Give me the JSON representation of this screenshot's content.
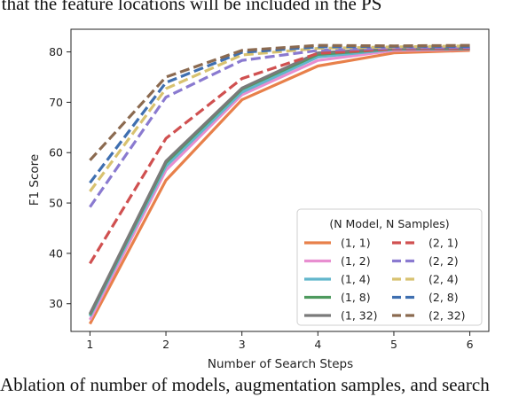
{
  "caption_top": "d that the feature locations will be included in the PS",
  "caption_bottom": "Ablation of number of models, augmentation samples, and search",
  "chart_data": {
    "type": "line",
    "title": "",
    "xlabel": "Number of Search Steps",
    "ylabel": "F1 Score",
    "x": [
      1,
      2,
      3,
      4,
      5,
      6
    ],
    "xlim": [
      0.75,
      6.25
    ],
    "ylim": [
      24.5,
      84.5
    ],
    "xticks": [
      1,
      2,
      3,
      4,
      5,
      6
    ],
    "yticks": [
      30,
      40,
      50,
      60,
      70,
      80
    ],
    "grid": false,
    "legend_title": "(N Model, N Samples)",
    "legend_position": "lower-right",
    "series": [
      {
        "name": "(1, 1)",
        "color": "#e8804a",
        "dash": "solid",
        "values": [
          26.0,
          54.5,
          70.5,
          77.2,
          79.8,
          80.3
        ]
      },
      {
        "name": "(1, 2)",
        "color": "#e88ed0",
        "dash": "solid",
        "values": [
          26.8,
          56.5,
          71.5,
          78.3,
          80.3,
          80.5
        ]
      },
      {
        "name": "(1, 4)",
        "color": "#62b6cc",
        "dash": "solid",
        "values": [
          27.5,
          57.3,
          72.0,
          79.0,
          80.5,
          80.6
        ]
      },
      {
        "name": "(1, 8)",
        "color": "#4e9a5e",
        "dash": "solid",
        "values": [
          27.8,
          58.0,
          72.6,
          79.5,
          80.6,
          80.6
        ]
      },
      {
        "name": "(1, 32)",
        "color": "#7a7a7a",
        "dash": "solid",
        "values": [
          28.0,
          58.3,
          72.8,
          79.8,
          80.7,
          80.7
        ]
      },
      {
        "name": "(2, 1)",
        "color": "#d05050",
        "dash": "dashed",
        "values": [
          38.0,
          62.8,
          74.7,
          79.7,
          80.6,
          80.7
        ]
      },
      {
        "name": "(2, 2)",
        "color": "#8a7ad0",
        "dash": "dashed",
        "values": [
          49.2,
          71.0,
          78.3,
          80.3,
          80.8,
          80.9
        ]
      },
      {
        "name": "(2, 4)",
        "color": "#d8c270",
        "dash": "dashed",
        "values": [
          52.3,
          72.7,
          79.4,
          80.7,
          81.0,
          81.2
        ]
      },
      {
        "name": "(2, 8)",
        "color": "#3f6fb0",
        "dash": "dashed",
        "values": [
          54.0,
          73.9,
          79.9,
          81.0,
          81.1,
          81.1
        ]
      },
      {
        "name": "(2, 32)",
        "color": "#8b6a50",
        "dash": "dashed",
        "values": [
          58.5,
          75.0,
          80.3,
          81.3,
          81.2,
          81.3
        ]
      }
    ]
  }
}
